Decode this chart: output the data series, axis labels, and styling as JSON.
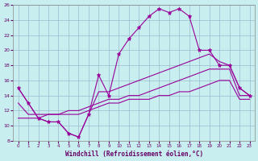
{
  "xlabel": "Windchill (Refroidissement éolien,°C)",
  "bg_color": "#c8eef0",
  "line_color": "#990099",
  "x": [
    0,
    1,
    2,
    3,
    4,
    5,
    6,
    7,
    8,
    9,
    10,
    11,
    12,
    13,
    14,
    15,
    16,
    17,
    18,
    19,
    20,
    21,
    22,
    23
  ],
  "line1_jagged": [
    15,
    13,
    11,
    10.5,
    10.5,
    9.0,
    8.5,
    11.5,
    16.7,
    14.0,
    19.5,
    21.5,
    23.0,
    24.5,
    25.5,
    25.0,
    25.5,
    24.5,
    20.0,
    20.0,
    18.0,
    18.0,
    15.0,
    14.0
  ],
  "line2_upper": [
    15,
    13,
    11,
    10.5,
    10.5,
    9.0,
    8.5,
    11.5,
    14.5,
    14.5,
    15.0,
    15.5,
    16.0,
    16.5,
    17.0,
    17.5,
    18.0,
    18.5,
    19.0,
    19.5,
    18.5,
    18.0,
    15.0,
    14.0
  ],
  "line3_mid": [
    13,
    11.5,
    11.5,
    11.5,
    11.5,
    12.0,
    12.0,
    12.5,
    13.0,
    13.5,
    13.5,
    14.0,
    14.0,
    14.5,
    15.0,
    15.5,
    16.0,
    16.5,
    17.0,
    17.5,
    17.5,
    17.5,
    14.0,
    14.0
  ],
  "line4_lower": [
    11,
    11,
    11,
    11.5,
    11.5,
    11.5,
    11.5,
    12.0,
    12.5,
    13.0,
    13.0,
    13.5,
    13.5,
    13.5,
    14.0,
    14.0,
    14.5,
    14.5,
    15.0,
    15.5,
    16.0,
    16.0,
    13.5,
    13.5
  ],
  "ylim": [
    8,
    26
  ],
  "xlim": [
    -0.5,
    23.5
  ],
  "yticks": [
    8,
    10,
    12,
    14,
    16,
    18,
    20,
    22,
    24,
    26
  ],
  "xticks": [
    0,
    1,
    2,
    3,
    4,
    5,
    6,
    7,
    8,
    9,
    10,
    11,
    12,
    13,
    14,
    15,
    16,
    17,
    18,
    19,
    20,
    21,
    22,
    23
  ]
}
